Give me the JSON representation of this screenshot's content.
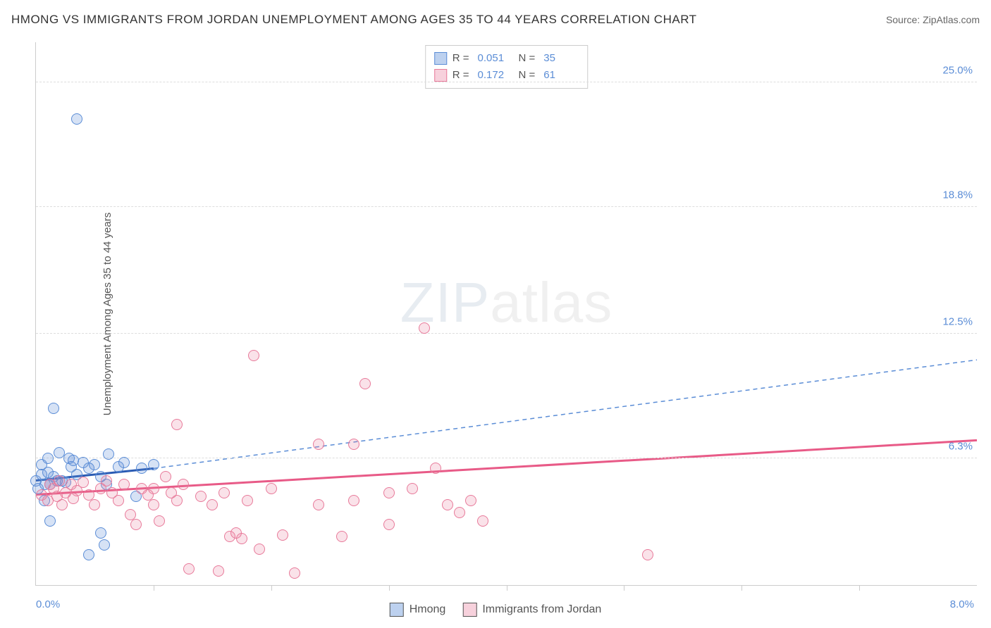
{
  "title": "HMONG VS IMMIGRANTS FROM JORDAN UNEMPLOYMENT AMONG AGES 35 TO 44 YEARS CORRELATION CHART",
  "source_label": "Source: ZipAtlas.com",
  "ylabel": "Unemployment Among Ages 35 to 44 years",
  "watermark_a": "ZIP",
  "watermark_b": "atlas",
  "chart": {
    "type": "scatter",
    "xlim": [
      0.0,
      8.0
    ],
    "ylim": [
      0.0,
      27.0
    ],
    "x_start_label": "0.0%",
    "x_end_label": "8.0%",
    "x_tick_step": 1.0,
    "y_gridlines": [
      6.3,
      12.5,
      18.8,
      25.0
    ],
    "y_tick_labels": [
      "6.3%",
      "12.5%",
      "18.8%",
      "25.0%"
    ],
    "background_color": "#ffffff",
    "grid_color": "#dddddd",
    "axis_color": "#cccccc",
    "tick_label_color": "#5b8dd6",
    "series": [
      {
        "id": "a",
        "name": "Hmong",
        "color": "#5b8dd6",
        "fill": "rgba(91,141,214,0.25)",
        "r": 0.051,
        "n": 35,
        "trend_solid": {
          "x1": 0.0,
          "y1": 5.2,
          "x2": 1.0,
          "y2": 5.8
        },
        "trend_dashed": {
          "x1": 1.0,
          "y1": 5.8,
          "x2": 8.0,
          "y2": 11.2
        },
        "points": [
          [
            0.0,
            5.2
          ],
          [
            0.02,
            4.8
          ],
          [
            0.05,
            5.5
          ],
          [
            0.05,
            6.0
          ],
          [
            0.07,
            4.2
          ],
          [
            0.08,
            5.0
          ],
          [
            0.1,
            5.6
          ],
          [
            0.1,
            6.3
          ],
          [
            0.12,
            3.2
          ],
          [
            0.12,
            5.0
          ],
          [
            0.15,
            5.4
          ],
          [
            0.15,
            8.8
          ],
          [
            0.18,
            5.2
          ],
          [
            0.2,
            6.6
          ],
          [
            0.22,
            5.2
          ],
          [
            0.25,
            5.1
          ],
          [
            0.28,
            6.3
          ],
          [
            0.3,
            5.9
          ],
          [
            0.32,
            6.2
          ],
          [
            0.35,
            5.5
          ],
          [
            0.35,
            23.2
          ],
          [
            0.4,
            6.1
          ],
          [
            0.45,
            5.8
          ],
          [
            0.45,
            1.5
          ],
          [
            0.5,
            6.0
          ],
          [
            0.55,
            5.4
          ],
          [
            0.58,
            2.0
          ],
          [
            0.6,
            5.0
          ],
          [
            0.62,
            6.5
          ],
          [
            0.7,
            5.9
          ],
          [
            0.75,
            6.1
          ],
          [
            0.85,
            4.4
          ],
          [
            0.9,
            5.8
          ],
          [
            1.0,
            6.0
          ],
          [
            0.55,
            2.6
          ]
        ]
      },
      {
        "id": "b",
        "name": "Immigrants from Jordan",
        "color": "#e87a9a",
        "fill": "rgba(232,122,154,0.22)",
        "r": 0.172,
        "n": 61,
        "trend_solid": {
          "x1": 0.0,
          "y1": 4.5,
          "x2": 8.0,
          "y2": 7.2
        },
        "points": [
          [
            0.05,
            4.5
          ],
          [
            0.1,
            4.2
          ],
          [
            0.12,
            5.0
          ],
          [
            0.15,
            4.8
          ],
          [
            0.18,
            4.4
          ],
          [
            0.2,
            5.2
          ],
          [
            0.22,
            4.0
          ],
          [
            0.25,
            4.6
          ],
          [
            0.3,
            5.0
          ],
          [
            0.32,
            4.3
          ],
          [
            0.35,
            4.7
          ],
          [
            0.4,
            5.1
          ],
          [
            0.45,
            4.5
          ],
          [
            0.5,
            4.0
          ],
          [
            0.55,
            4.8
          ],
          [
            0.6,
            5.2
          ],
          [
            0.65,
            4.6
          ],
          [
            0.7,
            4.2
          ],
          [
            0.75,
            5.0
          ],
          [
            0.8,
            3.5
          ],
          [
            0.85,
            3.0
          ],
          [
            0.9,
            4.8
          ],
          [
            0.95,
            4.5
          ],
          [
            1.0,
            4.0
          ],
          [
            1.0,
            4.8
          ],
          [
            1.05,
            3.2
          ],
          [
            1.1,
            5.4
          ],
          [
            1.15,
            4.6
          ],
          [
            1.2,
            4.2
          ],
          [
            1.2,
            8.0
          ],
          [
            1.25,
            5.0
          ],
          [
            1.3,
            0.8
          ],
          [
            1.4,
            4.4
          ],
          [
            1.5,
            4.0
          ],
          [
            1.55,
            0.7
          ],
          [
            1.6,
            4.6
          ],
          [
            1.65,
            2.4
          ],
          [
            1.7,
            2.6
          ],
          [
            1.75,
            2.3
          ],
          [
            1.8,
            4.2
          ],
          [
            1.85,
            11.4
          ],
          [
            1.9,
            1.8
          ],
          [
            2.0,
            4.8
          ],
          [
            2.1,
            2.5
          ],
          [
            2.2,
            0.6
          ],
          [
            2.4,
            4.0
          ],
          [
            2.4,
            7.0
          ],
          [
            2.6,
            2.4
          ],
          [
            2.7,
            4.2
          ],
          [
            2.7,
            7.0
          ],
          [
            2.8,
            10.0
          ],
          [
            3.0,
            4.6
          ],
          [
            3.0,
            3.0
          ],
          [
            3.2,
            4.8
          ],
          [
            3.3,
            12.8
          ],
          [
            3.4,
            5.8
          ],
          [
            3.5,
            4.0
          ],
          [
            3.6,
            3.6
          ],
          [
            3.7,
            4.2
          ],
          [
            3.8,
            3.2
          ],
          [
            5.2,
            1.5
          ]
        ]
      }
    ]
  },
  "corr_box": {
    "r_label": "R =",
    "n_label": "N ="
  },
  "legend": {
    "a": "Hmong",
    "b": "Immigrants from Jordan"
  }
}
